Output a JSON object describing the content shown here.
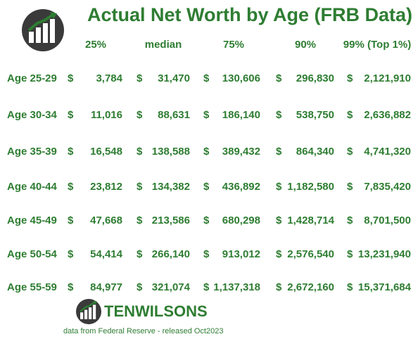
{
  "title": "Actual Net Worth by Age (FRB Data)",
  "brand": {
    "name": "TENWILSONS",
    "logo_icon": "bar-chart-arrow-logo"
  },
  "source_note": "data from Federal Reserve - released Oct2023",
  "chart_data": {
    "type": "table",
    "title": "Actual Net Worth by Age (FRB Data)",
    "columns": [
      "25%",
      "median",
      "75%",
      "90%",
      "99% (Top 1%)"
    ],
    "rows": [
      {
        "label": "Age 25-29",
        "values": [
          "3,784",
          "31,470",
          "130,606",
          "296,830",
          "2,121,910"
        ]
      },
      {
        "label": "Age 30-34",
        "values": [
          "11,016",
          "88,631",
          "186,140",
          "538,750",
          "2,636,882"
        ]
      },
      {
        "label": "Age 35-39",
        "values": [
          "16,548",
          "138,588",
          "389,432",
          "864,340",
          "4,741,320"
        ]
      },
      {
        "label": "Age 40-44",
        "values": [
          "23,812",
          "134,382",
          "436,892",
          "1,182,580",
          "7,835,420"
        ]
      },
      {
        "label": "Age 45-49",
        "values": [
          "47,668",
          "213,586",
          "680,298",
          "1,428,714",
          "8,701,500"
        ]
      },
      {
        "label": "Age 50-54",
        "values": [
          "54,414",
          "266,140",
          "913,012",
          "2,576,540",
          "13,231,940"
        ]
      },
      {
        "label": "Age 55-59",
        "values": [
          "84,977",
          "321,074",
          "1,137,318",
          "2,672,160",
          "15,371,684"
        ]
      }
    ],
    "currency_symbol": "$",
    "text_color": "#2e7d32"
  }
}
